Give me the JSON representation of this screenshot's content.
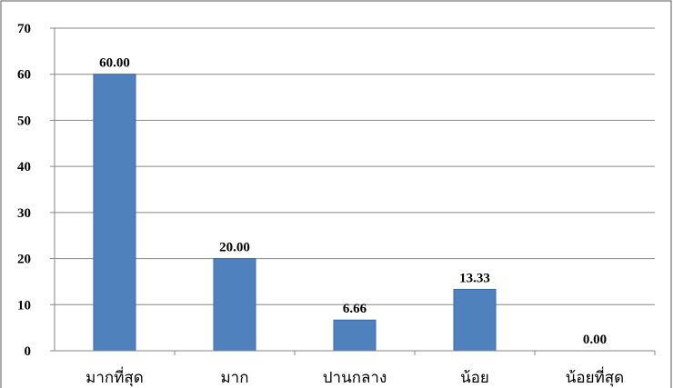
{
  "chart_data": {
    "type": "bar",
    "categories": [
      "มากที่สุด",
      "มาก",
      "ปานกลาง",
      "น้อย",
      "น้อยที่สุด"
    ],
    "values": [
      60.0,
      20.0,
      6.66,
      13.33,
      0.0
    ],
    "data_labels": [
      "60.00",
      "20.00",
      "6.66",
      "13.33",
      "0.00"
    ],
    "y_ticks": [
      "0",
      "10",
      "20",
      "30",
      "40",
      "50",
      "60",
      "70"
    ],
    "ylim": [
      0,
      70
    ],
    "grid": true,
    "legend": "none",
    "title": "",
    "xlabel": "",
    "ylabel": "",
    "bar_color": "#4f81bd",
    "bar_edge_color": "#3a6aa6"
  }
}
